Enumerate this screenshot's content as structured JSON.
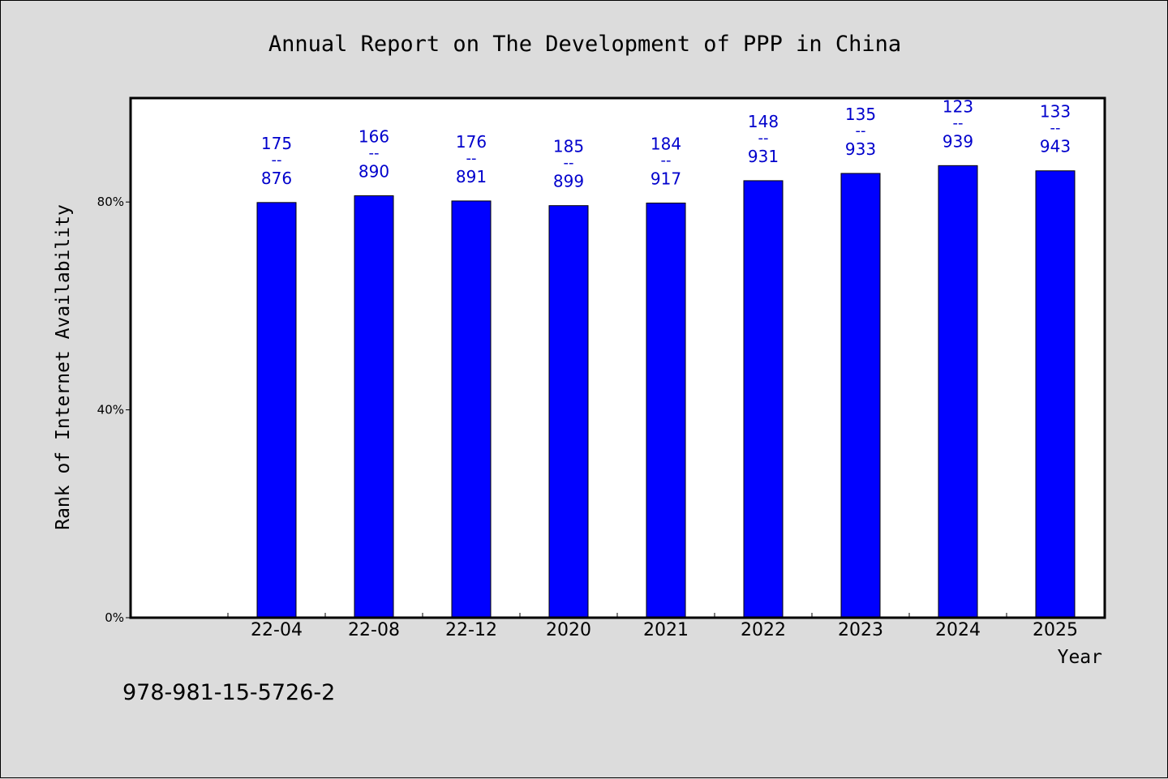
{
  "chart_data": {
    "type": "bar",
    "title": "Annual Report on The Development of PPP in China",
    "xlabel": "Year",
    "ylabel": "Rank of Internet Availability",
    "footnote": "978-981-15-5726-2",
    "categories": [
      "22-04",
      "22-08",
      "22-12",
      "2020",
      "2021",
      "2022",
      "2023",
      "2024",
      "2025"
    ],
    "values": [
      79.9,
      81.2,
      80.2,
      79.3,
      79.8,
      84.1,
      85.5,
      87.0,
      86.0
    ],
    "labels_top": [
      "175",
      "166",
      "176",
      "185",
      "184",
      "148",
      "135",
      "123",
      "133"
    ],
    "labels_sep": [
      "--",
      "--",
      "--",
      "--",
      "--",
      "--",
      "--",
      "--",
      "--"
    ],
    "labels_bottom": [
      "876",
      "890",
      "891",
      "899",
      "917",
      "931",
      "933",
      "939",
      "943"
    ],
    "yticks": [
      {
        "value": 0,
        "label": "0%"
      },
      {
        "value": 40,
        "label": "40%"
      },
      {
        "value": 80,
        "label": "80%"
      }
    ],
    "ylim": [
      0,
      100
    ],
    "grid": false,
    "colors": {
      "bar": "#0000ff",
      "bar_edge": "#000000",
      "label": "#0000cc",
      "plot_bg": "#ffffff",
      "figure_bg": "#dcdcdc"
    }
  }
}
